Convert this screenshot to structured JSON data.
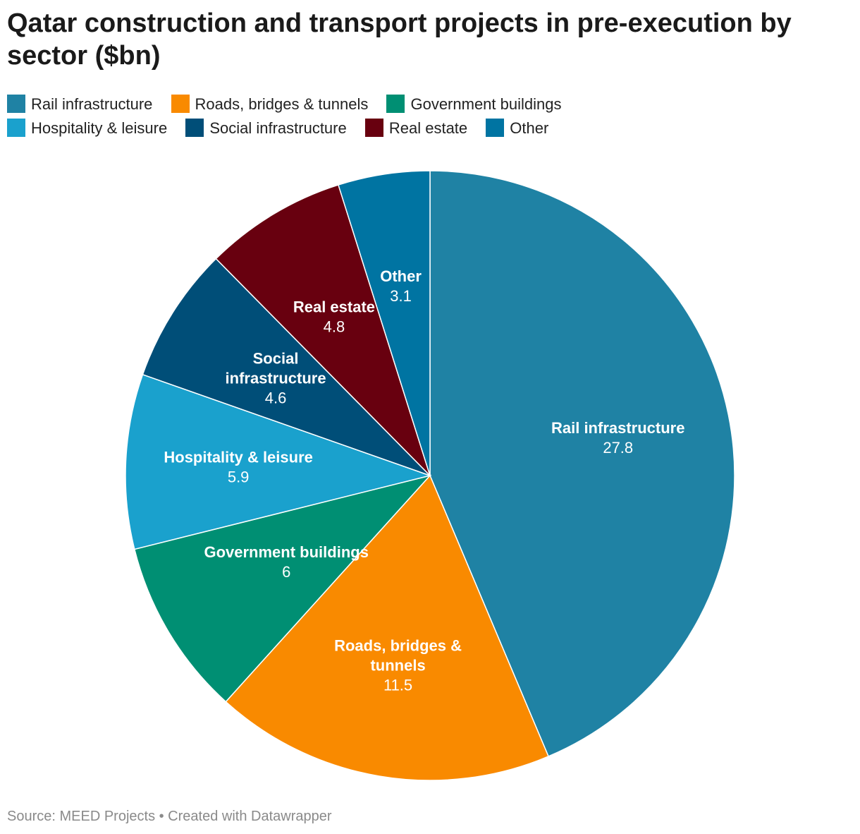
{
  "title": "Qatar construction and transport projects in pre-execution by sector ($bn)",
  "source": "Source: MEED Projects • Created with Datawrapper",
  "chart_data": {
    "type": "pie",
    "title": "Qatar construction and transport projects in pre-execution by sector ($bn)",
    "unit": "$bn",
    "legend_position": "top",
    "slices": [
      {
        "name": "Rail infrastructure",
        "label_lines": [
          "Rail infrastructure"
        ],
        "value": 27.8,
        "value_label": "27.8",
        "color": "#1f82a4"
      },
      {
        "name": "Roads, bridges & tunnels",
        "label_lines": [
          "Roads, bridges &",
          "tunnels"
        ],
        "value": 11.5,
        "value_label": "11.5",
        "color": "#f98a00"
      },
      {
        "name": "Government buildings",
        "label_lines": [
          "Government buildings"
        ],
        "value": 6,
        "value_label": "6",
        "color": "#008f73"
      },
      {
        "name": "Hospitality & leisure",
        "label_lines": [
          "Hospitality & leisure"
        ],
        "value": 5.9,
        "value_label": "5.9",
        "color": "#1aa1cd"
      },
      {
        "name": "Social infrastructure",
        "label_lines": [
          "Social",
          "infrastructure"
        ],
        "value": 4.6,
        "value_label": "4.6",
        "color": "#004e78"
      },
      {
        "name": "Real estate",
        "label_lines": [
          "Real estate"
        ],
        "value": 4.8,
        "value_label": "4.8",
        "color": "#68000f"
      },
      {
        "name": "Other",
        "label_lines": [
          "Other"
        ],
        "value": 3.1,
        "value_label": "3.1",
        "color": "#0074a2"
      }
    ]
  }
}
